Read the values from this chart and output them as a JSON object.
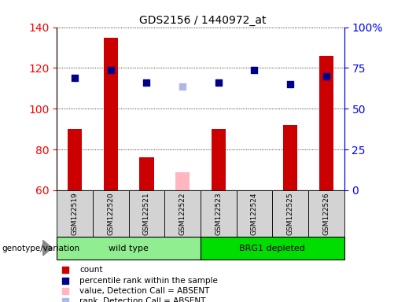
{
  "title": "GDS2156 / 1440972_at",
  "samples": [
    "GSM122519",
    "GSM122520",
    "GSM122521",
    "GSM122522",
    "GSM122523",
    "GSM122524",
    "GSM122525",
    "GSM122526"
  ],
  "count_values": [
    90,
    135,
    76,
    null,
    90,
    null,
    92,
    126
  ],
  "count_absent": [
    null,
    null,
    null,
    69,
    null,
    null,
    null,
    null
  ],
  "percentile_values": [
    115,
    119,
    113,
    null,
    113,
    119,
    112,
    116
  ],
  "percentile_absent": [
    null,
    null,
    null,
    111,
    null,
    null,
    null,
    null
  ],
  "ylim_left": [
    60,
    140
  ],
  "ylim_right": [
    0,
    100
  ],
  "yticks_left": [
    60,
    80,
    100,
    120,
    140
  ],
  "yticks_right": [
    0,
    25,
    50,
    75,
    100
  ],
  "ytick_labels_right": [
    "0",
    "25",
    "50",
    "75",
    "100%"
  ],
  "groups": [
    {
      "label": "wild type",
      "samples": [
        0,
        1,
        2,
        3
      ],
      "color": "#90ee90"
    },
    {
      "label": "BRG1 depleted",
      "samples": [
        4,
        5,
        6,
        7
      ],
      "color": "#00dd00"
    }
  ],
  "group_row_label": "genotype/variation",
  "bar_color_present": "#cc0000",
  "bar_color_absent": "#ffb6c1",
  "dot_color_present": "#00008b",
  "dot_color_absent": "#b0b8e8",
  "bar_width": 0.4,
  "dot_size": 35,
  "legend_items": [
    {
      "color": "#cc0000",
      "label": "count"
    },
    {
      "color": "#00008b",
      "label": "percentile rank within the sample"
    },
    {
      "color": "#ffb6c1",
      "label": "value, Detection Call = ABSENT"
    },
    {
      "color": "#b0b8e8",
      "label": "rank, Detection Call = ABSENT"
    }
  ]
}
